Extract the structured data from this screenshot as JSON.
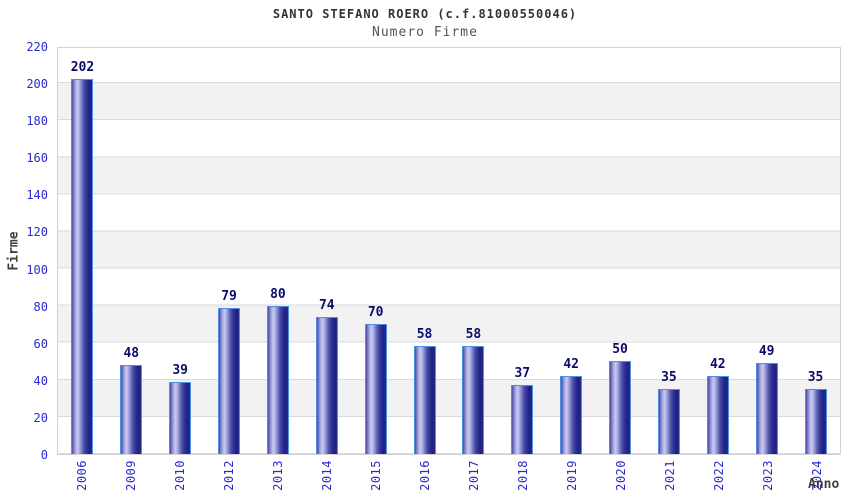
{
  "chart_data": {
    "type": "bar",
    "title": "SANTO STEFANO ROERO (c.f.81000550046)",
    "subtitle": "Numero Firme",
    "xlabel": "Anno",
    "ylabel": "Firme",
    "categories": [
      "2006",
      "2009",
      "2010",
      "2012",
      "2013",
      "2014",
      "2015",
      "2016",
      "2017",
      "2018",
      "2019",
      "2020",
      "2021",
      "2022",
      "2023",
      "2024"
    ],
    "values": [
      202,
      48,
      39,
      79,
      80,
      74,
      70,
      58,
      58,
      37,
      42,
      50,
      35,
      42,
      49,
      35
    ],
    "ylim": [
      0,
      220
    ],
    "yticks": [
      0,
      20,
      40,
      60,
      80,
      100,
      120,
      140,
      160,
      180,
      200,
      220
    ],
    "grid": "horizontal-bands",
    "legend_position": "none",
    "colors": {
      "bar_fill_dark": "#262a8c",
      "bar_fill_light": "#c9cbf0",
      "bar_border": "#4b90e2",
      "axis_label_blue": "#2a2ad0",
      "value_label_navy": "#0b0b6b",
      "band_gray": "#f2f2f2",
      "gridline": "#dadada",
      "title_color": "#333333",
      "subtitle_color": "#555555",
      "axis_title_color": "#3f3f3f"
    }
  }
}
